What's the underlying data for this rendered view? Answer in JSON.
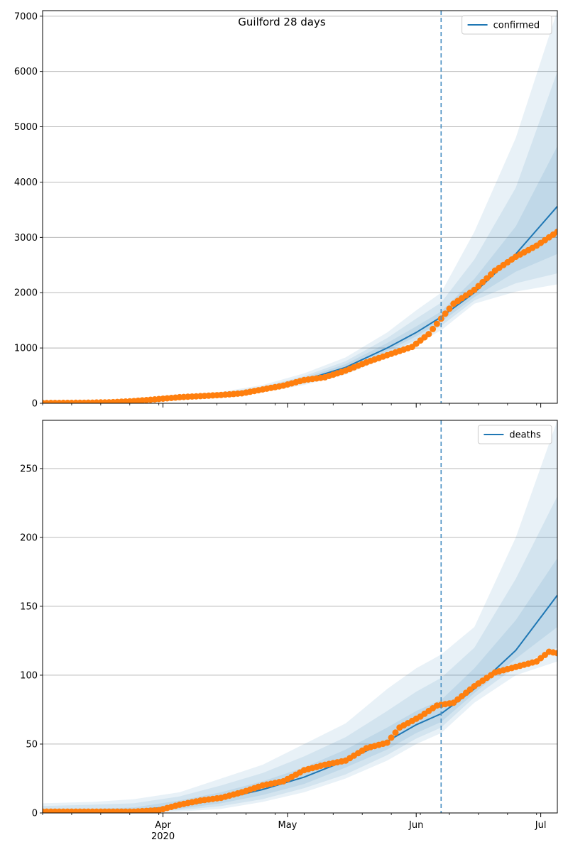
{
  "figure": {
    "title": "Guilford 28 days"
  },
  "chart_data": [
    {
      "type": "line",
      "legend": {
        "entries": [
          "confirmed"
        ],
        "placement": "top-right"
      },
      "grid": "horizontal",
      "ylim": [
        0,
        7100
      ],
      "yticks": [
        0,
        1000,
        2000,
        3000,
        4000,
        5000,
        6000,
        7000
      ],
      "xlim": [
        "2020-03-03",
        "2020-07-05"
      ],
      "xticks": [
        {
          "date": "2020-04-01",
          "label": "Apr",
          "sublabel": "2020"
        },
        {
          "date": "2020-05-01",
          "label": "May",
          "sublabel": ""
        },
        {
          "date": "2020-06-01",
          "label": "Jun",
          "sublabel": ""
        },
        {
          "date": "2020-07-01",
          "label": "Jul",
          "sublabel": ""
        }
      ],
      "forecast_start": "2020-06-07",
      "colors": {
        "model": "#1f77b4",
        "observed": "#ff7f0e",
        "band": "#1f77b4",
        "marker": "#4a90c2"
      },
      "model": {
        "dates": [
          "2020-03-03",
          "2020-03-15",
          "2020-03-25",
          "2020-04-05",
          "2020-04-15",
          "2020-04-25",
          "2020-05-05",
          "2020-05-15",
          "2020-05-25",
          "2020-06-01",
          "2020-06-07",
          "2020-06-15",
          "2020-06-25",
          "2020-07-05"
        ],
        "median": [
          0,
          10,
          40,
          110,
          160,
          260,
          420,
          650,
          1000,
          1280,
          1560,
          2000,
          2700,
          3560
        ],
        "bands": [
          {
            "lower": [
              0,
              5,
              28,
              85,
              125,
              200,
              330,
              520,
              830,
              1070,
              1320,
              1800,
              2020,
              2150
            ],
            "upper": [
              10,
              18,
              55,
              140,
              205,
              330,
              540,
              830,
              1280,
              1680,
              2000,
              3100,
              4800,
              7100
            ]
          },
          {
            "lower": [
              0,
              7,
              32,
              92,
              135,
              220,
              360,
              570,
              890,
              1150,
              1400,
              1860,
              2170,
              2350
            ],
            "upper": [
              6,
              15,
              50,
              128,
              185,
              300,
              490,
              760,
              1180,
              1530,
              1820,
              2600,
              3900,
              6000
            ]
          },
          {
            "lower": [
              0,
              8,
              35,
              98,
              145,
              235,
              385,
              610,
              940,
              1210,
              1470,
              1920,
              2380,
              2700
            ],
            "upper": [
              3,
              12,
              45,
              120,
              175,
              285,
              460,
              710,
              1090,
              1390,
              1660,
              2250,
              3200,
              4650
            ]
          }
        ]
      },
      "observed": {
        "dates": [
          "2020-03-03",
          "2020-03-10",
          "2020-03-15",
          "2020-03-20",
          "2020-03-25",
          "2020-03-30",
          "2020-04-05",
          "2020-04-10",
          "2020-04-15",
          "2020-04-20",
          "2020-04-25",
          "2020-04-30",
          "2020-05-05",
          "2020-05-10",
          "2020-05-15",
          "2020-05-20",
          "2020-05-25",
          "2020-05-31",
          "2020-06-04",
          "2020-06-07",
          "2020-06-10",
          "2020-06-15",
          "2020-06-20",
          "2020-06-25",
          "2020-06-30",
          "2020-07-05"
        ],
        "values": [
          5,
          8,
          12,
          20,
          40,
          70,
          110,
          130,
          150,
          180,
          250,
          320,
          420,
          470,
          590,
          740,
          870,
          1020,
          1250,
          1530,
          1800,
          2050,
          2400,
          2650,
          2850,
          3100
        ]
      }
    },
    {
      "type": "line",
      "legend": {
        "entries": [
          "deaths"
        ],
        "placement": "top-right"
      },
      "grid": "horizontal",
      "ylim": [
        0,
        285
      ],
      "yticks": [
        0,
        50,
        100,
        150,
        200,
        250
      ],
      "xlim": [
        "2020-03-03",
        "2020-07-05"
      ],
      "xticks": [
        {
          "date": "2020-04-01",
          "label": "Apr",
          "sublabel": "2020"
        },
        {
          "date": "2020-05-01",
          "label": "May",
          "sublabel": ""
        },
        {
          "date": "2020-06-01",
          "label": "Jun",
          "sublabel": ""
        },
        {
          "date": "2020-07-01",
          "label": "Jul",
          "sublabel": ""
        }
      ],
      "forecast_start": "2020-06-07",
      "colors": {
        "model": "#1f77b4",
        "observed": "#ff7f0e",
        "band": "#1f77b4",
        "marker": "#4a90c2"
      },
      "model": {
        "dates": [
          "2020-03-03",
          "2020-03-15",
          "2020-03-25",
          "2020-04-05",
          "2020-04-15",
          "2020-04-25",
          "2020-05-05",
          "2020-05-15",
          "2020-05-25",
          "2020-06-01",
          "2020-06-07",
          "2020-06-15",
          "2020-06-25",
          "2020-07-05"
        ],
        "median": [
          1,
          1,
          2,
          5,
          10,
          17,
          26,
          38,
          52,
          64,
          72,
          90,
          118,
          158
        ],
        "bands": [
          {
            "lower": [
              0,
              0,
              0,
              1,
              3,
              8,
              15,
              25,
              38,
              50,
              58,
              80,
              100,
              110
            ],
            "upper": [
              7,
              8,
              10,
              15,
              25,
              35,
              50,
              65,
              90,
              105,
              115,
              135,
              200,
              285
            ]
          },
          {
            "lower": [
              0,
              0,
              1,
              2,
              5,
              10,
              18,
              28,
              42,
              54,
              62,
              84,
              106,
              120
            ],
            "upper": [
              5,
              6,
              7,
              12,
              20,
              29,
              41,
              55,
              74,
              88,
              98,
              120,
              170,
              230
            ]
          },
          {
            "lower": [
              0,
              0,
              1,
              3,
              7,
              13,
              21,
              33,
              46,
              58,
              66,
              87,
              112,
              135
            ],
            "upper": [
              3,
              3,
              4,
              9,
              15,
              23,
              33,
              46,
              62,
              74,
              82,
              105,
              140,
              185
            ]
          }
        ]
      },
      "observed": {
        "dates": [
          "2020-03-03",
          "2020-03-15",
          "2020-03-25",
          "2020-03-31",
          "2020-04-05",
          "2020-04-10",
          "2020-04-15",
          "2020-04-20",
          "2020-04-25",
          "2020-04-30",
          "2020-05-05",
          "2020-05-10",
          "2020-05-15",
          "2020-05-20",
          "2020-05-25",
          "2020-05-28",
          "2020-06-02",
          "2020-06-06",
          "2020-06-10",
          "2020-06-15",
          "2020-06-20",
          "2020-06-25",
          "2020-06-30",
          "2020-07-03",
          "2020-07-05"
        ],
        "values": [
          1,
          1,
          1,
          2,
          6,
          9,
          11,
          15,
          20,
          23,
          31,
          35,
          38,
          47,
          51,
          62,
          70,
          78,
          80,
          92,
          102,
          106,
          110,
          117,
          116
        ]
      }
    }
  ]
}
